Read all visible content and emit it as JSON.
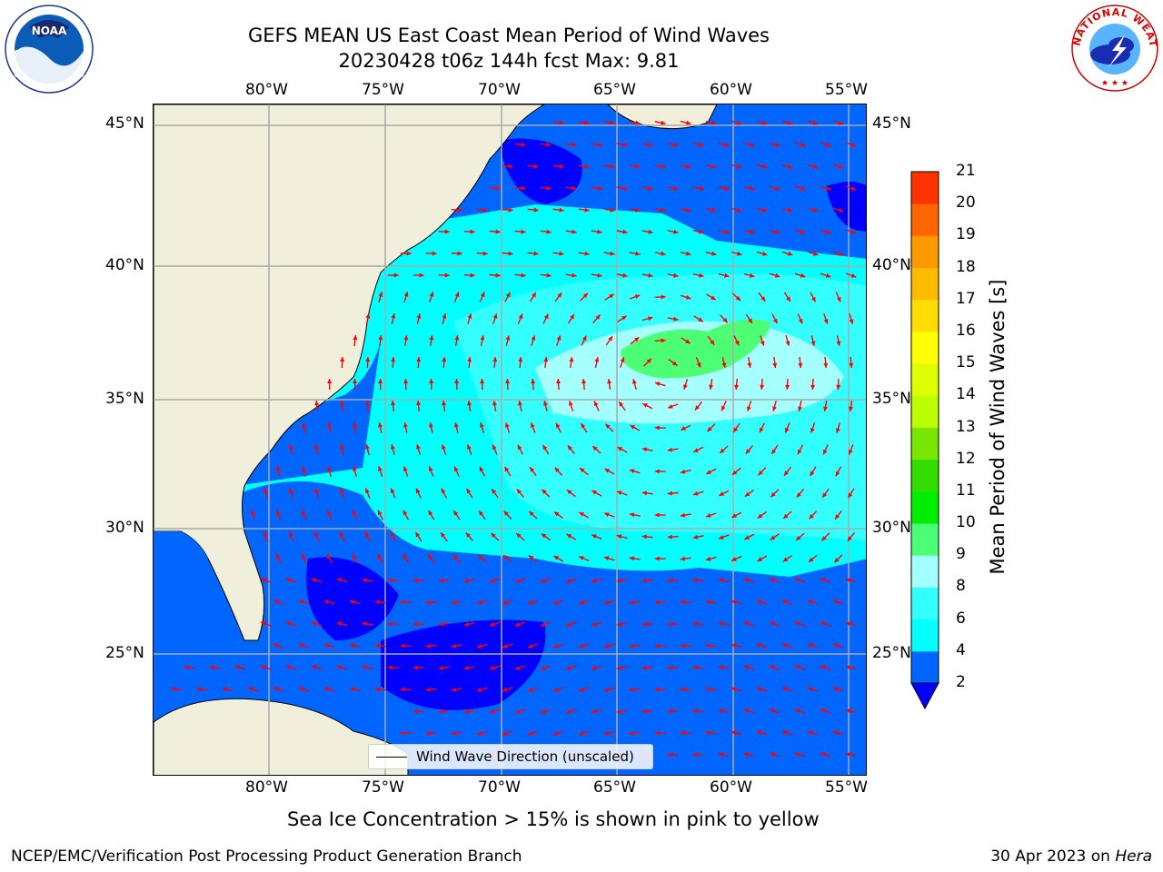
{
  "header": {
    "title_line1": "GEFS MEAN US East Coast Mean Period of Wind Waves",
    "title_line2": "20230428 t06z 144h fcst   Max: 9.81"
  },
  "logos": {
    "left": "NOAA",
    "right": "NATIONAL WEATHER SERVICE"
  },
  "map": {
    "lon_labels": [
      "80°W",
      "75°W",
      "70°W",
      "65°W",
      "60°W",
      "55°W"
    ],
    "lat_labels": [
      "45°N",
      "40°N",
      "35°N",
      "30°N",
      "25°N"
    ],
    "extent": {
      "lon": [
        -85,
        -54.2
      ],
      "lat": [
        20.5,
        46
      ]
    },
    "arrow_color": "#ff0000",
    "land_color": "#efefdb",
    "legend_text": "Wind Wave Direction (unscaled)"
  },
  "colorbar": {
    "label": "Mean Period of Wind Waves [s]",
    "ticks": [
      "2",
      "4",
      "6",
      "8",
      "9",
      "10",
      "11",
      "12",
      "13",
      "14",
      "15",
      "16",
      "17",
      "18",
      "19",
      "20",
      "21"
    ],
    "colors": [
      "#0066ff",
      "#00ffff",
      "#33ffff",
      "#a4ffff",
      "#4dff75",
      "#00ee00",
      "#33dd00",
      "#77e600",
      "#bbff00",
      "#ddff00",
      "#ffff00",
      "#ffdd00",
      "#ffbb00",
      "#ff9900",
      "#ff6600",
      "#ff3300",
      "#ff0000"
    ],
    "under_color": "#0000ff"
  },
  "footer": {
    "note": "Sea Ice Concentration > 15% is shown in pink to yellow",
    "credit": "NCEP/EMC/Verification Post Processing Product Generation Branch",
    "date_prefix": "30 Apr 2023 on ",
    "machine": "Hera"
  }
}
